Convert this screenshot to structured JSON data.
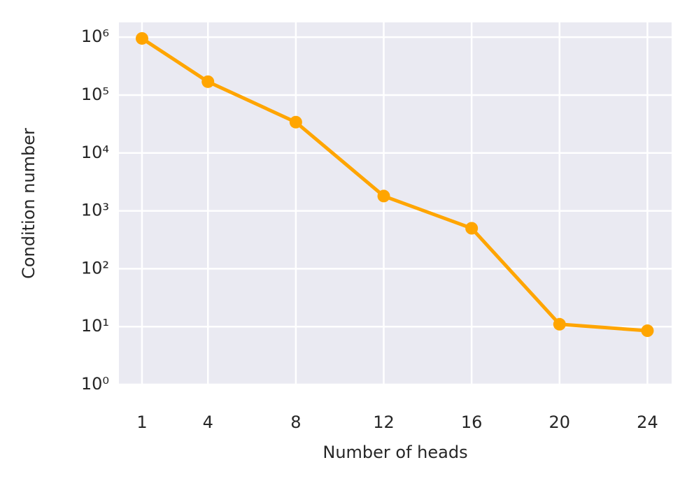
{
  "chart_data": {
    "type": "line",
    "xlabel": "Number of heads",
    "ylabel": "Condition number",
    "x": [
      1,
      4,
      8,
      12,
      16,
      20,
      24
    ],
    "series": [
      {
        "name": "Condition number",
        "color": "#ffa500",
        "values": [
          950000,
          170000,
          34000,
          1800,
          500,
          11,
          8.5
        ]
      }
    ],
    "xlim": [
      -0.05,
      25.1
    ],
    "xticks": [
      1,
      4,
      8,
      12,
      16,
      20,
      24
    ],
    "ylim": [
      1,
      1800000
    ],
    "yscale": "log",
    "yticks": [
      {
        "value": 1,
        "label": "10⁰"
      },
      {
        "value": 10,
        "label": "10¹"
      },
      {
        "value": 100,
        "label": "10²"
      },
      {
        "value": 1000,
        "label": "10³"
      },
      {
        "value": 10000,
        "label": "10⁴"
      },
      {
        "value": 100000,
        "label": "10⁵"
      },
      {
        "value": 1000000,
        "label": "10⁶"
      }
    ],
    "grid": true
  }
}
